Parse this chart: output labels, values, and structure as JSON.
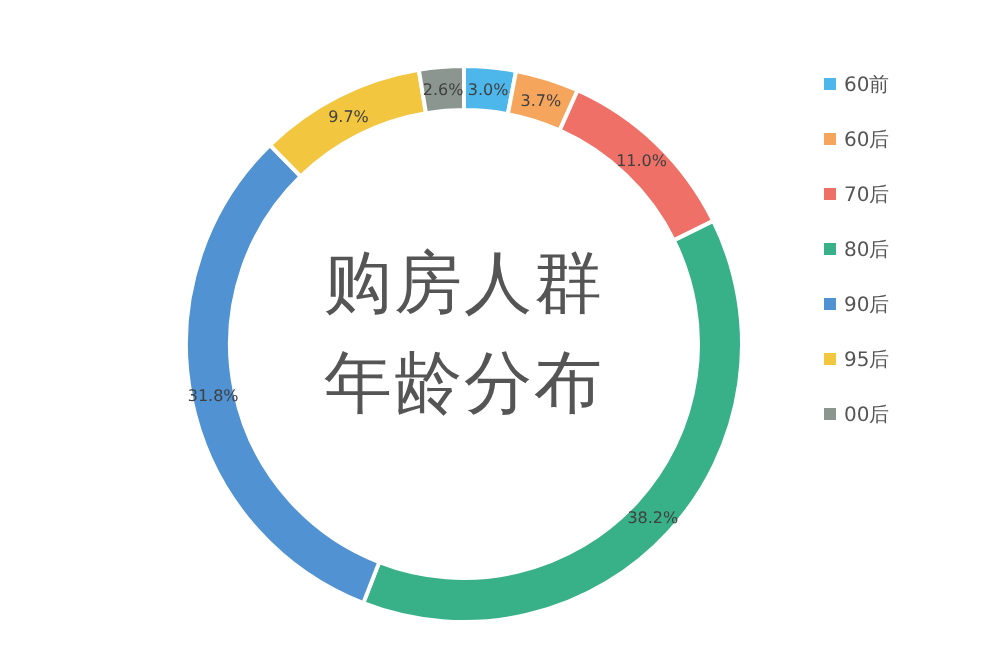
{
  "chart_data": {
    "type": "donut",
    "title": "购房人群年龄分布",
    "categories": [
      "60前",
      "60后",
      "70后",
      "80后",
      "90后",
      "95后",
      "00后"
    ],
    "values": [
      3.0,
      3.7,
      11.0,
      38.2,
      31.8,
      9.7,
      2.6
    ],
    "colors": [
      "#4db6ea",
      "#f6a55d",
      "#ef7067",
      "#38b088",
      "#5092d2",
      "#f3c640",
      "#8c9690"
    ],
    "value_labels": [
      "3.0%",
      "3.7%",
      "11.0%",
      "38.2%",
      "31.8%",
      "9.7%",
      "2.6%"
    ],
    "legend": "right"
  }
}
